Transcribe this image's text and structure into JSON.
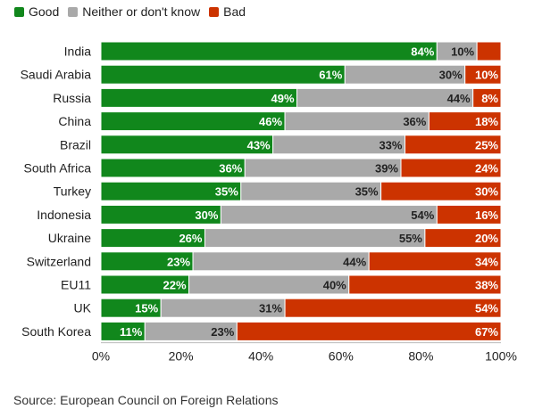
{
  "legend": {
    "good": "Good",
    "neither": "Neither or don't know",
    "bad": "Bad"
  },
  "colors": {
    "good": "#11871c",
    "neither": "#a9a9a9",
    "bad": "#cc3300",
    "axis": "#333333",
    "grid": "#dddddd"
  },
  "source": "Source: European Council on Foreign Relations",
  "chart_data": {
    "type": "bar",
    "orientation": "horizontal",
    "stacked": true,
    "categories": [
      "India",
      "Saudi Arabia",
      "Russia",
      "China",
      "Brazil",
      "South Africa",
      "Turkey",
      "Indonesia",
      "Ukraine",
      "Switzerland",
      "EU11",
      "UK",
      "South Korea"
    ],
    "series": [
      {
        "name": "Good",
        "values": [
          84,
          61,
          49,
          46,
          43,
          36,
          35,
          30,
          26,
          23,
          22,
          15,
          11
        ]
      },
      {
        "name": "Neither or don't know",
        "values": [
          10,
          30,
          44,
          36,
          33,
          39,
          35,
          54,
          55,
          44,
          40,
          31,
          23
        ]
      },
      {
        "name": "Bad",
        "values": [
          5,
          10,
          8,
          18,
          25,
          24,
          30,
          16,
          20,
          34,
          38,
          54,
          67
        ]
      }
    ],
    "data_labels": {
      "Good": [
        "84%",
        "61%",
        "49%",
        "46%",
        "43%",
        "36%",
        "35%",
        "30%",
        "26%",
        "23%",
        "22%",
        "15%",
        "11%"
      ],
      "Neither or don't know": [
        "10%",
        "30%",
        "44%",
        "36%",
        "33%",
        "39%",
        "35%",
        "54%",
        "55%",
        "44%",
        "40%",
        "31%",
        "23%"
      ],
      "Bad": [
        "",
        "10%",
        "8%",
        "18%",
        "25%",
        "24%",
        "30%",
        "16%",
        "20%",
        "34%",
        "38%",
        "54%",
        "67%"
      ]
    },
    "x_ticks": [
      "0%",
      "20%",
      "40%",
      "60%",
      "80%",
      "100%"
    ],
    "xlim": [
      0,
      100
    ],
    "legend_position": "top-left",
    "grid": false
  }
}
